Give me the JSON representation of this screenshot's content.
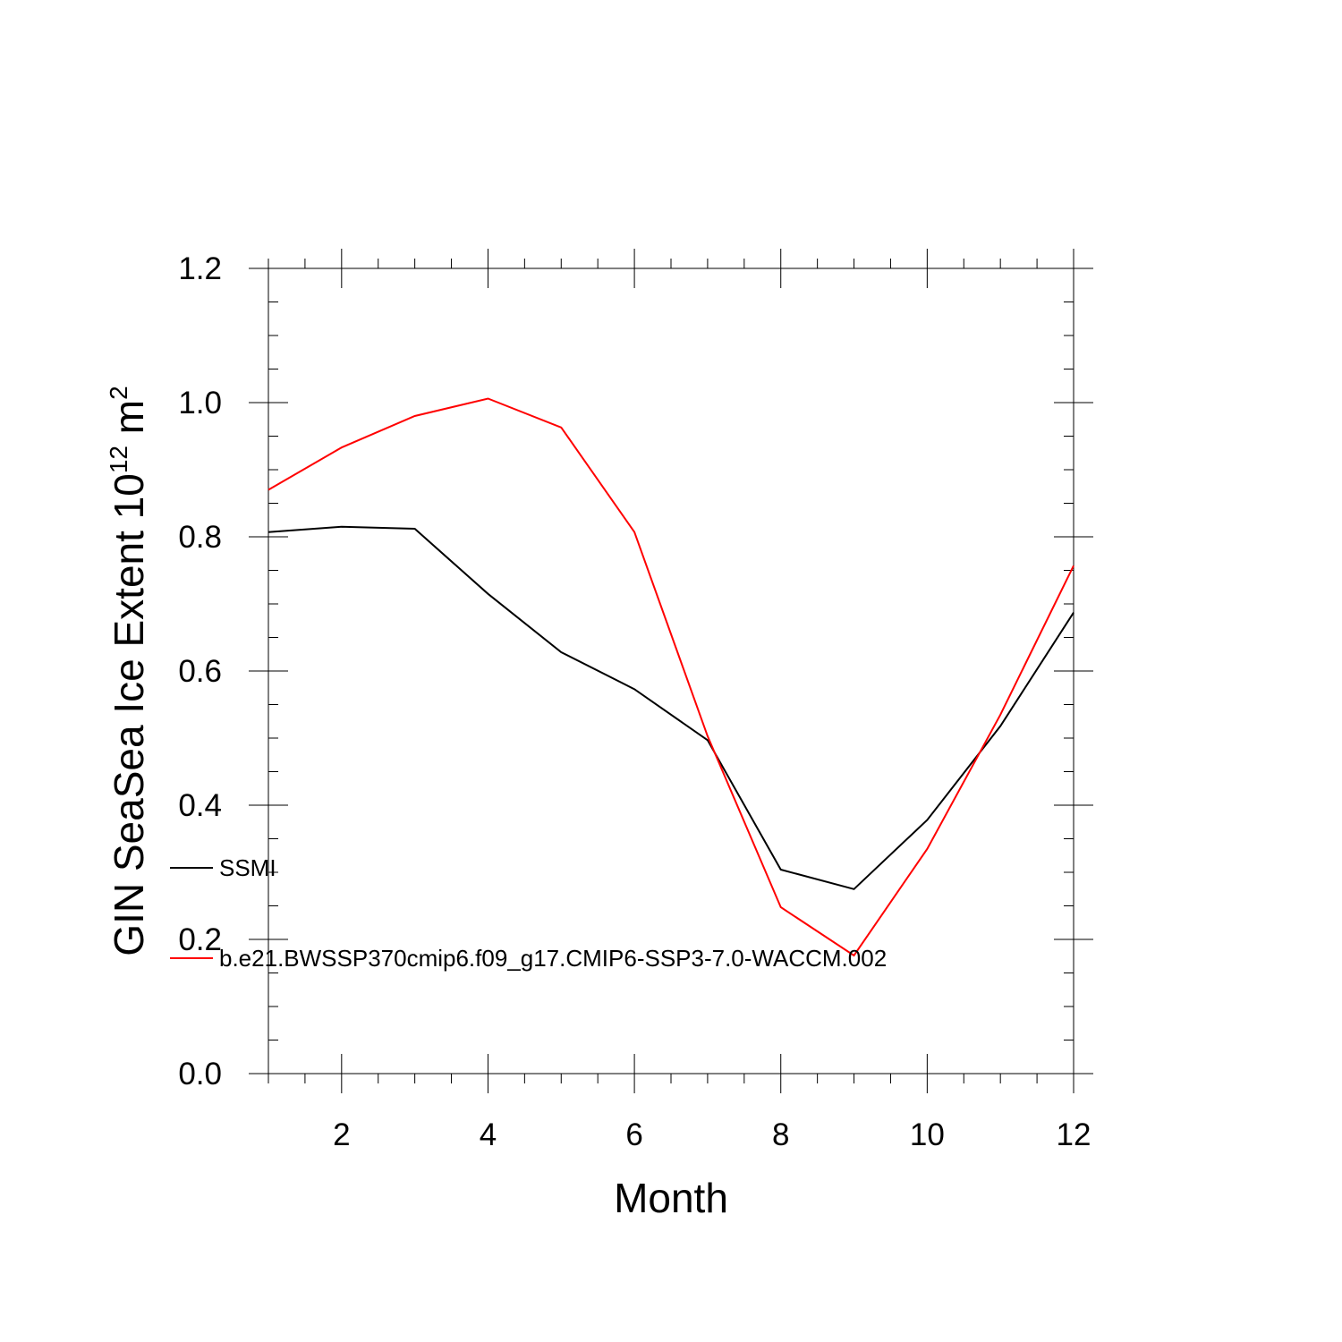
{
  "chart_data": {
    "type": "line",
    "title": "",
    "xlabel": "Month",
    "ylabel": {
      "base": "GIN SeaSea Ice Extent 10",
      "exponent": "12",
      "unit": " m",
      "unit_exponent": "2"
    },
    "xlim": [
      1,
      12
    ],
    "ylim": [
      0.0,
      1.2
    ],
    "x_ticks": [
      2,
      4,
      6,
      8,
      10,
      12
    ],
    "x_tick_labels": [
      "2",
      "4",
      "6",
      "8",
      "10",
      "12"
    ],
    "y_ticks": [
      0.0,
      0.2,
      0.4,
      0.6,
      0.8,
      1.0,
      1.2
    ],
    "y_tick_labels": [
      "0.0",
      "0.2",
      "0.4",
      "0.6",
      "0.8",
      "1.0",
      "1.2"
    ],
    "grid": false,
    "legend_placement": "inside-left",
    "x": [
      1,
      2,
      3,
      4,
      5,
      6,
      7,
      8,
      9,
      10,
      11,
      12
    ],
    "series": [
      {
        "name": "SSMI",
        "color": "#000000",
        "values": [
          0.807,
          0.815,
          0.812,
          0.715,
          0.628,
          0.573,
          0.497,
          0.304,
          0.275,
          0.378,
          0.518,
          0.687
        ]
      },
      {
        "name": "b.e21.BWSSP370cmip6.f09_g17.CMIP6-SSP3-7.0-WACCM.002",
        "color": "#ff0000",
        "values": [
          0.87,
          0.933,
          0.98,
          1.006,
          0.963,
          0.807,
          0.503,
          0.248,
          0.176,
          0.335,
          0.535,
          0.757
        ]
      }
    ]
  }
}
